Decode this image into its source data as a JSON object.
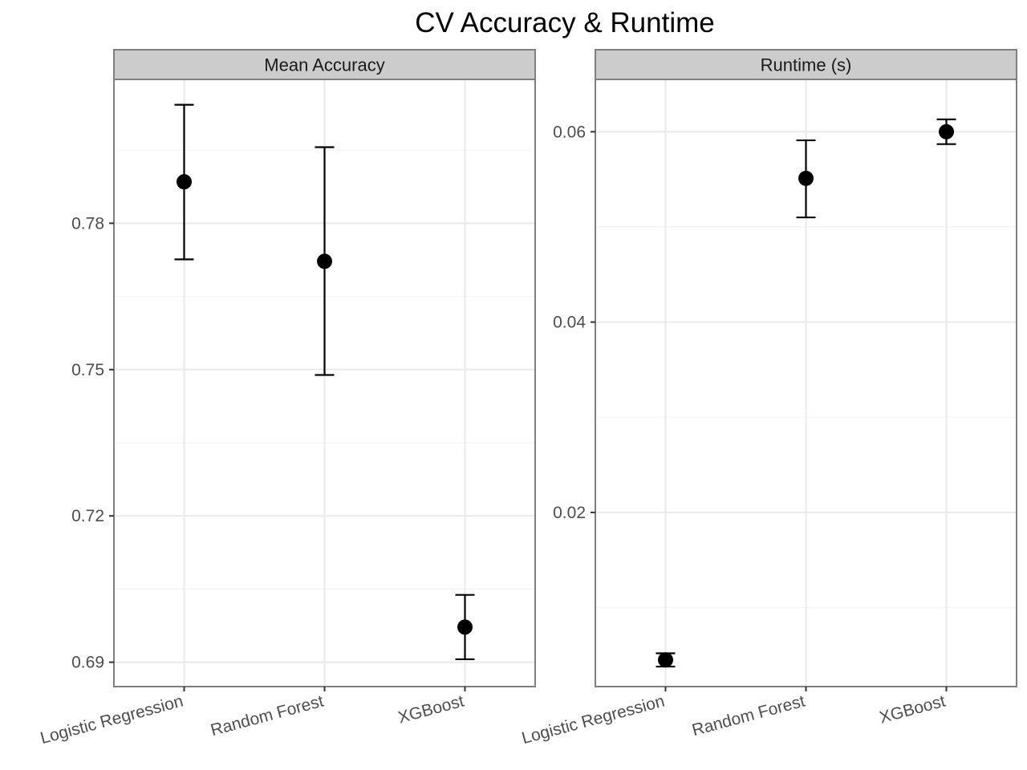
{
  "chart_data": {
    "type": "scatter",
    "title": "CV Accuracy & Runtime",
    "categories": [
      "Logistic Regression",
      "Random Forest",
      "XGBoost"
    ],
    "grid": true,
    "legend": "none",
    "colors": {
      "point": "#000000",
      "strip_fill": "#cccccc",
      "panel_border": "#7f7f7f",
      "grid_major": "#ebebeb"
    },
    "facets": [
      {
        "strip": "Mean Accuracy",
        "ylim": [
          0.685,
          0.8095
        ],
        "yticks": [
          0.69,
          0.72,
          0.75,
          0.78
        ],
        "ytick_labels": [
          "0.69",
          "0.72",
          "0.75",
          "0.78"
        ],
        "points": [
          {
            "category": "Logistic Regression",
            "mean": 0.7885,
            "lower": 0.7726,
            "upper": 0.8043
          },
          {
            "category": "Random Forest",
            "mean": 0.7722,
            "lower": 0.7489,
            "upper": 0.7956
          },
          {
            "category": "XGBoost",
            "mean": 0.6972,
            "lower": 0.6906,
            "upper": 0.7038
          }
        ]
      },
      {
        "strip": "Runtime (s)",
        "ylim": [
          0.0017,
          0.0655
        ],
        "yticks": [
          0.02,
          0.04,
          0.06
        ],
        "ytick_labels": [
          "0.02",
          "0.04",
          "0.06"
        ],
        "points": [
          {
            "category": "Logistic Regression",
            "mean": 0.0045,
            "lower": 0.0038,
            "upper": 0.0052
          },
          {
            "category": "Random Forest",
            "mean": 0.0551,
            "lower": 0.051,
            "upper": 0.0591
          },
          {
            "category": "XGBoost",
            "mean": 0.06,
            "lower": 0.0587,
            "upper": 0.0613
          }
        ]
      }
    ]
  }
}
